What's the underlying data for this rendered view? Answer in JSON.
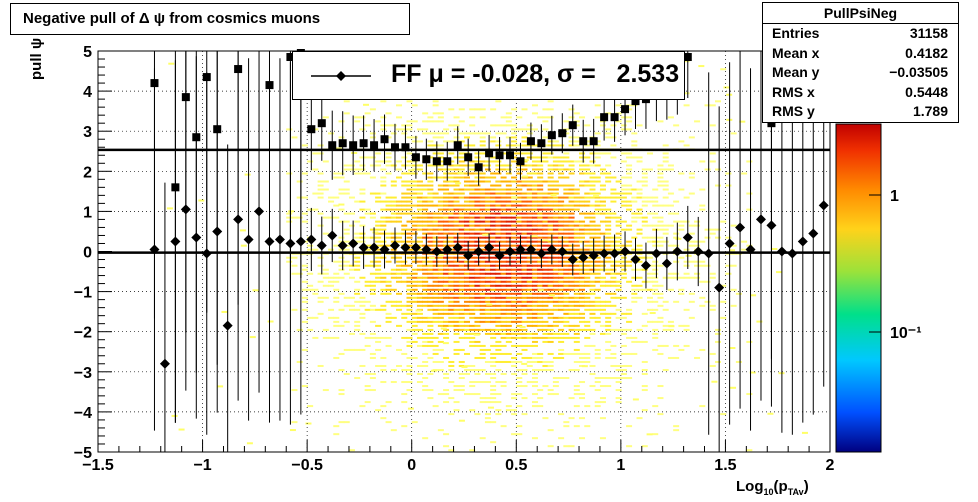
{
  "chart_data": {
    "type": "scatter",
    "title": "Negative pull of Δ ψ from cosmics muons",
    "xlabel": "Log10(pTAv)",
    "ylabel": "pull ψ",
    "xlim": [
      -1.5,
      2
    ],
    "ylim": [
      -5,
      5
    ],
    "x_ticks": [
      "−1.5",
      "−1",
      "−0.5",
      "0",
      "0.5",
      "1",
      "1.5",
      "2"
    ],
    "y_ticks": [
      "5",
      "4",
      "3",
      "2",
      "1",
      "0",
      "−1",
      "−2",
      "−3",
      "−4",
      "−5"
    ],
    "grid": true,
    "legend": {
      "position": "top-center",
      "entries": [
        "FF μ = -0.028, σ =   2.533"
      ]
    },
    "stats_box": {
      "name": "PullPsiNeg",
      "entries": [
        {
          "label": "Entries",
          "value": "31158"
        },
        {
          "label": "Mean x",
          "value": "0.4182"
        },
        {
          "label": "Mean y",
          "value": "−0.03505"
        },
        {
          "label": "RMS x",
          "value": "0.5448"
        },
        {
          "label": "RMS y",
          "value": "1.789"
        }
      ]
    },
    "colorbar": {
      "ticks": [
        "1",
        "10⁻¹"
      ],
      "scale": "log"
    },
    "lines": [
      {
        "name": "mean",
        "y": -0.028
      },
      {
        "name": "sigma",
        "y": 2.533
      }
    ],
    "series": [
      {
        "marker": "diamond",
        "x": [
          -1.23,
          -1.18,
          -1.13,
          -1.08,
          -1.03,
          -0.98,
          -0.93,
          -0.88,
          -0.83,
          -0.78,
          -0.73,
          -0.68,
          -0.63,
          -0.58,
          -0.53,
          -0.48,
          -0.43,
          -0.38,
          -0.33,
          -0.28,
          -0.23,
          -0.18,
          -0.13,
          -0.08,
          -0.03,
          0.02,
          0.07,
          0.12,
          0.17,
          0.22,
          0.27,
          0.32,
          0.37,
          0.42,
          0.47,
          0.52,
          0.57,
          0.62,
          0.67,
          0.72,
          0.77,
          0.82,
          0.87,
          0.92,
          0.97,
          1.02,
          1.07,
          1.12,
          1.17,
          1.22,
          1.27,
          1.32,
          1.37,
          1.42,
          1.47,
          1.52,
          1.57,
          1.62,
          1.67,
          1.72,
          1.77,
          1.82,
          1.87,
          1.92,
          1.97
        ],
        "y": [
          0.05,
          -2.8,
          0.25,
          1.05,
          0.35,
          -0.05,
          0.5,
          -1.85,
          0.8,
          0.3,
          1.0,
          0.25,
          0.3,
          0.2,
          0.25,
          0.3,
          0.15,
          0.4,
          0.15,
          0.2,
          0.1,
          0.1,
          0.05,
          0.15,
          0.1,
          0.1,
          0.05,
          0.0,
          0.05,
          0.1,
          -0.1,
          0.0,
          0.1,
          -0.1,
          0.0,
          0.05,
          0.05,
          -0.05,
          0.05,
          0.0,
          -0.2,
          -0.15,
          -0.1,
          -0.05,
          -0.05,
          0.0,
          -0.2,
          -0.35,
          -0.05,
          -0.3,
          0.0,
          0.35,
          0.0,
          -0.05,
          -0.9,
          0.2,
          0.6,
          0.05,
          0.8,
          0.65,
          0.0,
          -0.05,
          0.25,
          0.45,
          1.15
        ]
      },
      {
        "marker": "square",
        "x": [
          -1.23,
          -1.13,
          -1.08,
          -1.03,
          -0.98,
          -0.93,
          -0.83,
          -0.68,
          -0.58,
          -0.53,
          -0.48,
          -0.43,
          -0.38,
          -0.33,
          -0.28,
          -0.23,
          -0.18,
          -0.13,
          -0.08,
          -0.03,
          0.02,
          0.07,
          0.12,
          0.17,
          0.22,
          0.27,
          0.32,
          0.37,
          0.42,
          0.47,
          0.52,
          0.57,
          0.62,
          0.67,
          0.72,
          0.77,
          0.82,
          0.87,
          0.92,
          0.97,
          1.02,
          1.07,
          1.12,
          1.17,
          1.22,
          1.27,
          1.32,
          1.72
        ],
        "y": [
          4.2,
          1.6,
          3.85,
          2.85,
          4.35,
          3.05,
          4.55,
          4.15,
          4.85,
          4.95,
          3.05,
          3.2,
          2.65,
          2.7,
          2.65,
          2.7,
          2.65,
          2.8,
          2.6,
          2.6,
          2.35,
          2.3,
          2.25,
          2.25,
          2.65,
          2.35,
          2.1,
          2.45,
          2.4,
          2.4,
          2.25,
          2.75,
          2.7,
          2.9,
          2.95,
          3.15,
          2.75,
          2.75,
          3.35,
          3.35,
          3.55,
          3.75,
          3.8,
          4.05,
          4.15,
          4.35,
          4.85,
          3.2
        ]
      }
    ]
  }
}
